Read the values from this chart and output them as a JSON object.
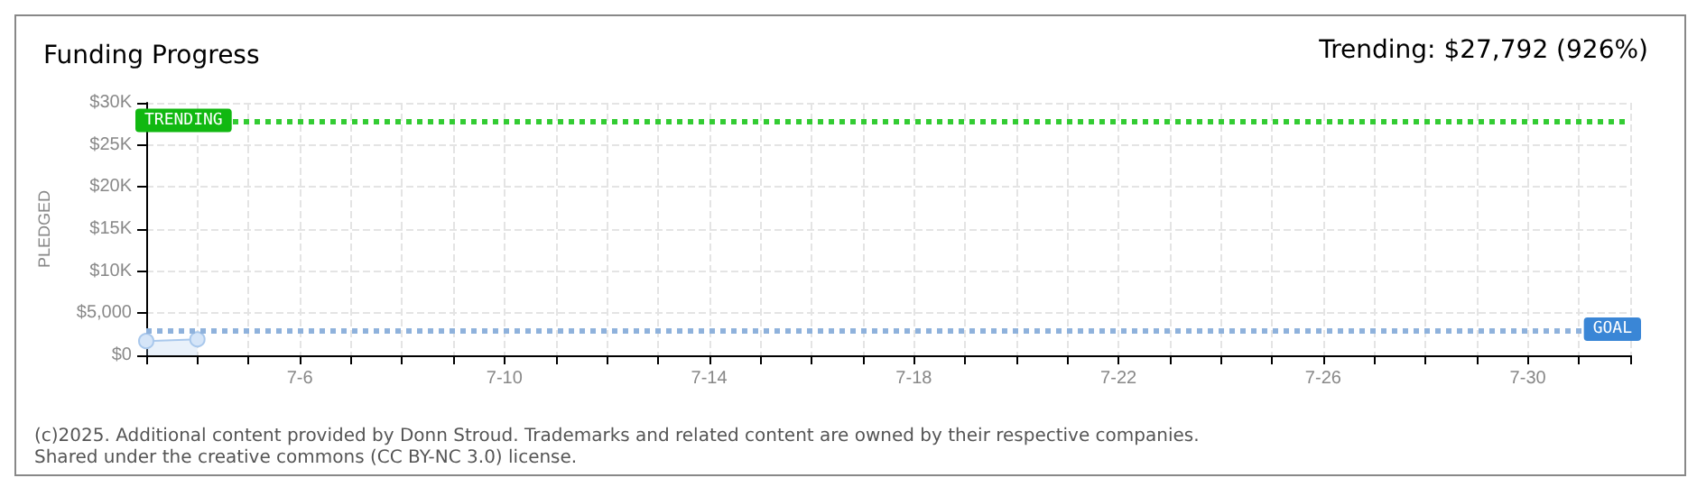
{
  "chart_data": {
    "type": "area",
    "title": "Funding Progress",
    "ylabel": "PLEDGED",
    "annotations": [
      "Trending: $27,792 (926%)",
      "(c)2025. Additional content provided by Donn Stroud. Trademarks and related content are owned by their respective companies.",
      "Shared under the creative commons (CC BY-NC 3.0) license."
    ],
    "x": [
      "--07-03",
      "--07-04"
    ],
    "series": [
      {
        "color": "#a9c8ec",
        "values": [
          1700,
          1900
        ]
      }
    ],
    "xlim": [
      "--07-03",
      "--08-01"
    ],
    "xticks": [
      {
        "value": "--07-03",
        "label": null
      },
      {
        "value": "--07-04",
        "label": null
      },
      {
        "value": "--07-05",
        "label": null
      },
      {
        "value": "--07-06",
        "label": "7-6"
      },
      {
        "value": "--07-07",
        "label": null
      },
      {
        "value": "--07-08",
        "label": null
      },
      {
        "value": "--07-09",
        "label": null
      },
      {
        "value": "--07-10",
        "label": "7-10"
      },
      {
        "value": "--07-11",
        "label": null
      },
      {
        "value": "--07-12",
        "label": null
      },
      {
        "value": "--07-13",
        "label": null
      },
      {
        "value": "--07-14",
        "label": "7-14"
      },
      {
        "value": "--07-15",
        "label": null
      },
      {
        "value": "--07-16",
        "label": null
      },
      {
        "value": "--07-17",
        "label": null
      },
      {
        "value": "--07-18",
        "label": "7-18"
      },
      {
        "value": "--07-19",
        "label": null
      },
      {
        "value": "--07-20",
        "label": null
      },
      {
        "value": "--07-21",
        "label": null
      },
      {
        "value": "--07-22",
        "label": "7-22"
      },
      {
        "value": "--07-23",
        "label": null
      },
      {
        "value": "--07-24",
        "label": null
      },
      {
        "value": "--07-25",
        "label": null
      },
      {
        "value": "--07-26",
        "label": "7-26"
      },
      {
        "value": "--07-27",
        "label": null
      },
      {
        "value": "--07-28",
        "label": null
      },
      {
        "value": "--07-29",
        "label": null
      },
      {
        "value": "--07-30",
        "label": "7-30"
      },
      {
        "value": "--07-31",
        "label": null
      },
      {
        "value": "--08-01",
        "label": null
      }
    ],
    "ylim": [
      0,
      30000
    ],
    "yticks": [
      {
        "value": 0,
        "label": "$0"
      },
      {
        "value": 5000,
        "label": "$5,000"
      },
      {
        "value": 10000,
        "label": "$10K"
      },
      {
        "value": 15000,
        "label": "$15K"
      },
      {
        "value": 20000,
        "label": "$20K"
      },
      {
        "value": 25000,
        "label": "$25K"
      },
      {
        "value": 30000,
        "label": "$30K"
      }
    ],
    "ref_lines": [
      {
        "axis": "y",
        "value": 27792,
        "label": "TRENDING",
        "color": "#33cc33",
        "line_style": "dotted"
      },
      {
        "axis": "y",
        "value": 3000,
        "label": "GOAL",
        "color": "#8fb2dc",
        "line_style": "dotted"
      }
    ],
    "grid": true,
    "marker": "circle"
  }
}
